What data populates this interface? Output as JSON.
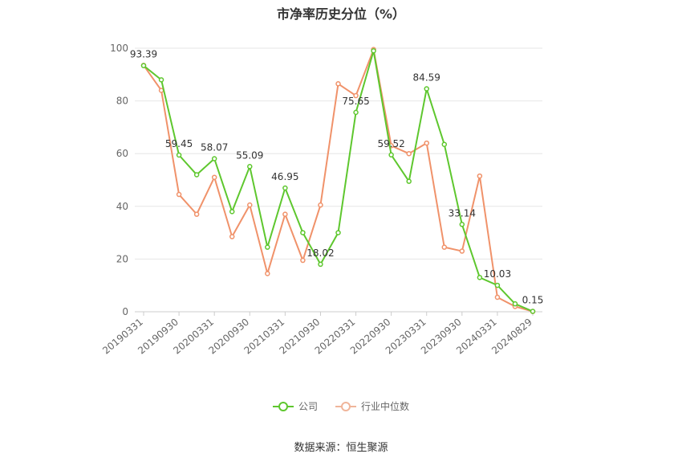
{
  "chart_data": {
    "type": "line",
    "title": "市净率历史分位（%）",
    "ylim": [
      0,
      100
    ],
    "yticks": [
      0,
      20,
      40,
      60,
      80,
      100
    ],
    "x_tick_labels": [
      "20190331",
      "20190930",
      "20200331",
      "20200930",
      "20210331",
      "20210930",
      "20220331",
      "20220930",
      "20230331",
      "20230930",
      "20240331",
      "20240829"
    ],
    "x": [
      "20190331",
      "20190630",
      "20190930",
      "20191231",
      "20200331",
      "20200630",
      "20200930",
      "20201231",
      "20210331",
      "20210630",
      "20210930",
      "20211231",
      "20220331",
      "20220630",
      "20220930",
      "20221231",
      "20230331",
      "20230630",
      "20230930",
      "20231231",
      "20240331",
      "20240630",
      "20240829"
    ],
    "series": [
      {
        "name": "公司",
        "color": "#5ec72e",
        "values": [
          93.39,
          88,
          59.45,
          52,
          58.07,
          38,
          55.09,
          24.5,
          46.95,
          30,
          18.02,
          30,
          75.65,
          99,
          59.52,
          49.5,
          84.59,
          63.5,
          33.14,
          13,
          10.03,
          3,
          0.15
        ],
        "labels": [
          "93.39",
          "",
          "59.45",
          "",
          "58.07",
          "",
          "55.09",
          "",
          "46.95",
          "",
          "18.02",
          "",
          "75.65",
          "",
          "59.52",
          "",
          "84.59",
          "",
          "33.14",
          "",
          "10.03",
          "",
          "0.15"
        ]
      },
      {
        "name": "行业中位数",
        "color": "#f0926a",
        "values": [
          93.5,
          84,
          44.5,
          37,
          51,
          28.5,
          40.5,
          14.5,
          37,
          19.5,
          40.5,
          86.5,
          82,
          99.5,
          63,
          60,
          64,
          24.5,
          23,
          51.5,
          5.5,
          2,
          0.1
        ]
      }
    ],
    "grid": true,
    "legend_position": "bottom-center"
  },
  "source": "数据来源：恒生聚源"
}
